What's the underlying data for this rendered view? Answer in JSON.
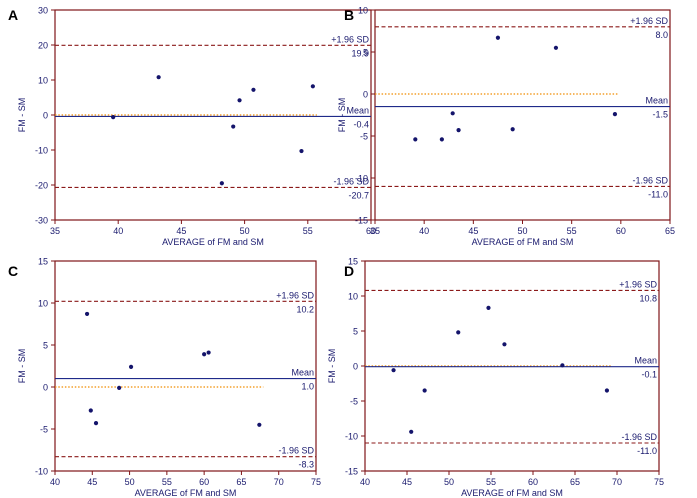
{
  "colors": {
    "frame": "#7f1518",
    "text": "#1a1a6e",
    "mean_line": "#1f2a8a",
    "sd_line": "#8b1a1a",
    "zero_line": "#f08c00",
    "point": "#14146b"
  },
  "chart_data": [
    {
      "panel": "A",
      "type": "scatter",
      "xlabel": "AVERAGE of FM and SM",
      "ylabel": "FM - SM",
      "xlim": [
        35,
        60
      ],
      "ylim": [
        -30,
        30
      ],
      "xticks": [
        35,
        40,
        45,
        50,
        55,
        60
      ],
      "yticks": [
        -30,
        -20,
        -10,
        0,
        10,
        20,
        30
      ],
      "points": [
        {
          "x": 39.6,
          "y": -0.6
        },
        {
          "x": 43.2,
          "y": 10.8
        },
        {
          "x": 48.2,
          "y": -19.5
        },
        {
          "x": 49.1,
          "y": -3.3
        },
        {
          "x": 49.6,
          "y": 4.2
        },
        {
          "x": 50.7,
          "y": 7.2
        },
        {
          "x": 54.5,
          "y": -10.3
        },
        {
          "x": 55.4,
          "y": 8.2
        }
      ],
      "mean": -0.4,
      "mean_label": "Mean",
      "mean_value_label": "-0.4",
      "upper": 19.9,
      "upper_label": "+1.96 SD",
      "upper_value_label": "19.9",
      "lower": -20.7,
      "lower_label": "-1.96 SD",
      "lower_value_label": "-20.7",
      "zero_line": true
    },
    {
      "panel": "B",
      "type": "scatter",
      "xlabel": "AVERAGE of FM and SM",
      "ylabel": "FM - SM",
      "xlim": [
        35,
        65
      ],
      "ylim": [
        -15,
        10
      ],
      "xticks": [
        35,
        40,
        45,
        50,
        55,
        60,
        65
      ],
      "yticks": [
        -15,
        -10,
        -5,
        0,
        5,
        10
      ],
      "points": [
        {
          "x": 39.1,
          "y": -5.4
        },
        {
          "x": 41.8,
          "y": -5.4
        },
        {
          "x": 42.9,
          "y": -2.3
        },
        {
          "x": 43.5,
          "y": -4.3
        },
        {
          "x": 47.5,
          "y": 6.7
        },
        {
          "x": 49.0,
          "y": -4.2
        },
        {
          "x": 53.4,
          "y": 5.5
        },
        {
          "x": 59.4,
          "y": -2.4
        }
      ],
      "mean": -1.5,
      "mean_label": "Mean",
      "mean_value_label": "-1.5",
      "upper": 8.0,
      "upper_label": "+1.96 SD",
      "upper_value_label": "8.0",
      "lower": -11.0,
      "lower_label": "-1.96 SD",
      "lower_value_label": "-11.0",
      "zero_line": true
    },
    {
      "panel": "C",
      "type": "scatter",
      "xlabel": "AVERAGE of FM and SM",
      "ylabel": "FM - SM",
      "xlim": [
        40,
        75
      ],
      "ylim": [
        -10,
        15
      ],
      "xticks": [
        40,
        45,
        50,
        55,
        60,
        65,
        70,
        75
      ],
      "yticks": [
        -10,
        -5,
        0,
        5,
        10,
        15
      ],
      "points": [
        {
          "x": 44.3,
          "y": 8.7
        },
        {
          "x": 44.8,
          "y": -2.8
        },
        {
          "x": 45.5,
          "y": -4.3
        },
        {
          "x": 48.6,
          "y": -0.1
        },
        {
          "x": 50.2,
          "y": 2.4
        },
        {
          "x": 60.0,
          "y": 3.9
        },
        {
          "x": 60.6,
          "y": 4.1
        },
        {
          "x": 67.4,
          "y": -4.5
        }
      ],
      "mean": 1.0,
      "mean_label": "Mean",
      "mean_value_label": "1.0",
      "upper": 10.2,
      "upper_label": "+1.96 SD",
      "upper_value_label": "10.2",
      "lower": -8.3,
      "lower_label": "-1.96 SD",
      "lower_value_label": "-8.3",
      "zero_line": true
    },
    {
      "panel": "D",
      "type": "scatter",
      "xlabel": "AVERAGE of FM and SM",
      "ylabel": "FM - SM",
      "xlim": [
        40,
        75
      ],
      "ylim": [
        -15,
        15
      ],
      "xticks": [
        40,
        45,
        50,
        55,
        60,
        65,
        70,
        75
      ],
      "yticks": [
        -15,
        -10,
        -5,
        0,
        5,
        10,
        15
      ],
      "points": [
        {
          "x": 43.4,
          "y": -0.6
        },
        {
          "x": 45.5,
          "y": -9.4
        },
        {
          "x": 47.1,
          "y": -3.5
        },
        {
          "x": 51.1,
          "y": 4.8
        },
        {
          "x": 54.7,
          "y": 8.3
        },
        {
          "x": 56.6,
          "y": 3.1
        },
        {
          "x": 63.5,
          "y": 0.1
        },
        {
          "x": 68.8,
          "y": -3.5
        }
      ],
      "mean": -0.1,
      "mean_label": "Mean",
      "mean_value_label": "-0.1",
      "upper": 10.8,
      "upper_label": "+1.96 SD",
      "upper_value_label": "10.8",
      "lower": -11.0,
      "lower_label": "-1.96 SD",
      "lower_value_label": "-11.0",
      "zero_line": true
    }
  ]
}
